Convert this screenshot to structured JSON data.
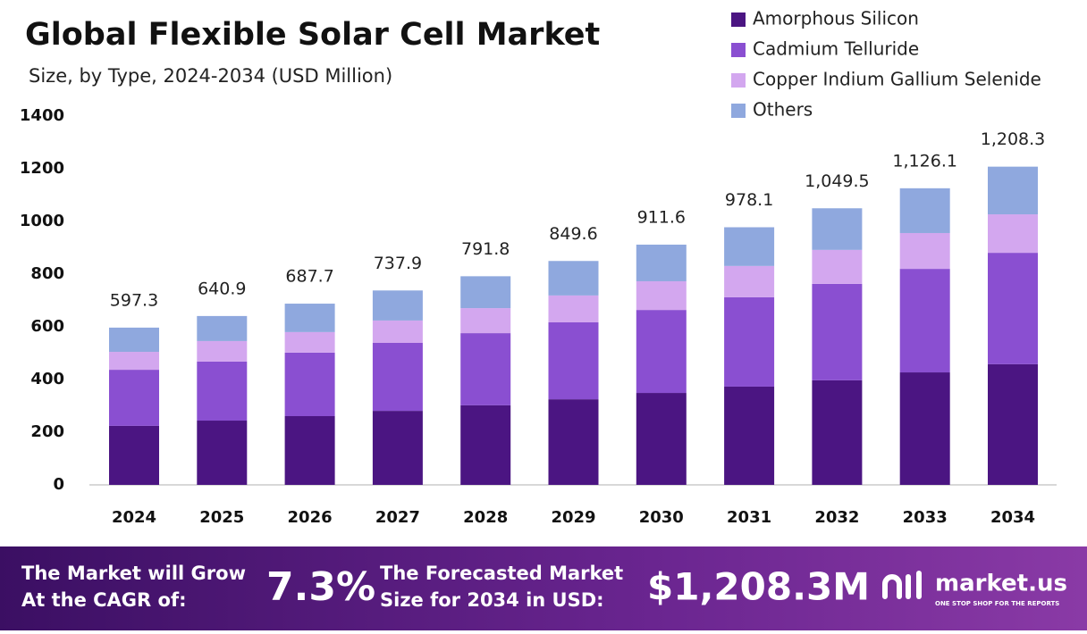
{
  "chart_data": {
    "type": "stacked-bar",
    "title": "Global Flexible Solar Cell Market",
    "subtitle": "Size, by Type, 2024-2034 (USD Million)",
    "categories": [
      "2024",
      "2025",
      "2026",
      "2027",
      "2028",
      "2029",
      "2030",
      "2031",
      "2032",
      "2033",
      "2034"
    ],
    "series": [
      {
        "name": "Amorphous Silicon",
        "color": "#4b1582",
        "values": [
          224,
          244,
          261,
          281,
          302,
          325,
          349,
          373,
          397,
          427,
          458
        ]
      },
      {
        "name": "Cadmium Telluride",
        "color": "#8a4fd1",
        "values": [
          213,
          224,
          241,
          258,
          274,
          292,
          315,
          339,
          366,
          393,
          423
        ]
      },
      {
        "name": "Copper Indium Gallium Selenide",
        "color": "#d3a7ef",
        "values": [
          68,
          78,
          78,
          85,
          95,
          102,
          109,
          119,
          129,
          136,
          146
        ]
      },
      {
        "name": "Others",
        "color": "#8fa8de",
        "values": [
          92,
          95,
          108,
          114,
          121,
          131,
          139,
          147,
          158,
          170,
          181
        ]
      }
    ],
    "totals": [
      597.3,
      640.9,
      687.7,
      737.9,
      791.8,
      849.6,
      911.6,
      978.1,
      1049.5,
      1126.1,
      1208.3
    ],
    "total_labels": [
      "597.3",
      "640.9",
      "687.7",
      "737.9",
      "791.8",
      "849.6",
      "911.6",
      "978.1",
      "1,049.5",
      "1,126.1",
      "1,208.3"
    ],
    "ylim": [
      0,
      1400
    ],
    "yticks": [
      0,
      200,
      400,
      600,
      800,
      1000,
      1200,
      1400
    ],
    "grid": false,
    "legend": "top-right"
  },
  "footer": {
    "cagr_text": [
      "The Market will Grow",
      "At the CAGR of:"
    ],
    "cagr": "7.3%",
    "forecast_text": [
      "The Forecasted Market",
      "Size for 2034 in USD:"
    ],
    "forecast": "$1,208.3M",
    "brand": "market.us",
    "tagline": "ONE STOP SHOP FOR THE REPORTS"
  }
}
